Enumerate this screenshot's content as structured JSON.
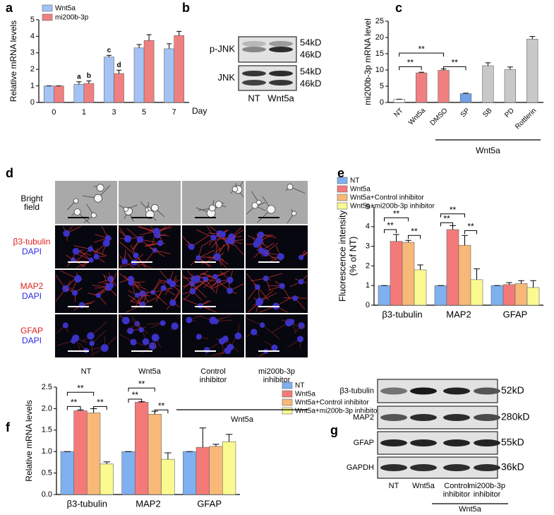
{
  "chart_data": [
    {
      "type": "bar",
      "ylabel": "Relative mRNA levels",
      "xlabel": "Day",
      "categories": [
        "0",
        "1",
        "3",
        "5",
        "7"
      ],
      "series": [
        {
          "name": "Wnt5a",
          "color": "#a4c2f4",
          "values": [
            1,
            1.1,
            2.75,
            3.3,
            3.25
          ],
          "errors": [
            0,
            0.15,
            0.1,
            0.2,
            0.3
          ]
        },
        {
          "name": "mi200b-3p",
          "color": "#f08080",
          "values": [
            1,
            1.15,
            1.75,
            3.75,
            4.05
          ],
          "errors": [
            0,
            0.15,
            0.2,
            0.35,
            0.25
          ]
        }
      ],
      "annotations": [
        "a",
        "b",
        "c",
        "d"
      ],
      "ylim": [
        0,
        5
      ],
      "yticks": [
        0,
        1,
        2,
        3,
        4,
        5
      ]
    },
    {
      "type": "bar",
      "ylabel": "mi200b-3p mRNA level",
      "categories": [
        "NT",
        "Wnt5a",
        "DMSO",
        "SP",
        "SB",
        "PD",
        "Rottlerin"
      ],
      "values": [
        1,
        9.1,
        9.9,
        2.7,
        11.3,
        10.1,
        19.5
      ],
      "errors": [
        0,
        0.2,
        0.4,
        0.15,
        0.9,
        0.8,
        0.8
      ],
      "colors": [
        "#ffffff",
        "#f08080",
        "#f08080",
        "#6fa0e8",
        "#c8c8c8",
        "#c8c8c8",
        "#c8c8c8"
      ],
      "annotations": [
        "**",
        "**",
        "**"
      ],
      "group_label": "Wnt5a",
      "ylim": [
        0,
        25
      ],
      "yticks": [
        0,
        5,
        10,
        15,
        20,
        25
      ]
    },
    {
      "type": "bar",
      "ylabel": [
        "Fluorescence intensity",
        "(% of NT)"
      ],
      "categories": [
        "β3-tubulin",
        "MAP2",
        "GFAP"
      ],
      "series": [
        {
          "name": "NT",
          "color": "#7fb0f0",
          "values": [
            1,
            1,
            1
          ],
          "errors": [
            0,
            0,
            0
          ]
        },
        {
          "name": "Wnt5a",
          "color": "#f47a7a",
          "values": [
            3.25,
            3.85,
            1.05
          ],
          "errors": [
            0.35,
            0.2,
            0.1
          ]
        },
        {
          "name": "Wnt5a+Control inhibitor",
          "color": "#f8b878",
          "values": [
            3.2,
            3.05,
            1.1
          ],
          "errors": [
            0.1,
            0.5,
            0.15
          ]
        },
        {
          "name": "Wnt5a+mi200b-3p inhibitor",
          "color": "#fafa90",
          "values": [
            1.8,
            1.3,
            0.9
          ],
          "errors": [
            0.25,
            0.55,
            0.35
          ]
        }
      ],
      "annotations": [
        "**",
        "**",
        "**",
        "**",
        "**",
        "**"
      ],
      "ylim": [
        0,
        5
      ],
      "yticks": [
        0,
        1,
        2,
        3,
        4,
        5
      ]
    },
    {
      "type": "bar",
      "ylabel": "Relative mRNA levels",
      "categories": [
        "β3-tubulin",
        "MAP2",
        "GFAP"
      ],
      "series": [
        {
          "name": "NT",
          "color": "#7fb0f0",
          "values": [
            1,
            1,
            1
          ],
          "errors": [
            0,
            0,
            0
          ]
        },
        {
          "name": "Wnt5a",
          "color": "#f47a7a",
          "values": [
            1.95,
            2.15,
            1.1
          ],
          "errors": [
            0.02,
            0.01,
            0.45
          ]
        },
        {
          "name": "Wnt5a+Control inhibitor",
          "color": "#f8b878",
          "values": [
            1.9,
            1.87,
            1.12
          ],
          "errors": [
            0.1,
            0.07,
            0.05
          ]
        },
        {
          "name": "Wnt5a+mi200b-3p inhibitor",
          "color": "#fafa90",
          "values": [
            0.71,
            0.82,
            1.23
          ],
          "errors": [
            0.05,
            0.15,
            0.17
          ]
        }
      ],
      "annotations": [
        "**",
        "**",
        "**",
        "**",
        "**",
        "**"
      ],
      "ylim": [
        0,
        2.5
      ],
      "yticks": [
        {
          "value": 0,
          "label": "0.0"
        },
        0.5,
        {
          "value": 1,
          "label": "1.0"
        },
        1.5,
        {
          "value": 2,
          "label": "2.0"
        },
        2.5
      ]
    }
  ],
  "figure": {
    "panel_labels": [
      "a",
      "b",
      "c",
      "d",
      "e",
      "f",
      "g"
    ],
    "blot_b": {
      "rows": [
        {
          "label": "p-JNK",
          "markers": [
            "54kD",
            "46kD"
          ]
        },
        {
          "label": "JNK",
          "markers": [
            "54kD",
            "46kD"
          ]
        }
      ],
      "lanes": [
        "NT",
        "Wnt5a"
      ]
    },
    "micrographs_d": {
      "rows": [
        {
          "labels": [
            "Bright field"
          ]
        },
        {
          "labels": [
            "β3-tubulin",
            "DAPI"
          ]
        },
        {
          "labels": [
            "MAP2",
            "DAPI"
          ]
        },
        {
          "labels": [
            "GFAP",
            "DAPI"
          ]
        }
      ],
      "columns": [
        "NT",
        "Wnt5a",
        "Control inhibitor",
        "mi200b-3p inhibitor"
      ],
      "group": "Wnt5a"
    },
    "blot_g": {
      "rows": [
        {
          "label": "β3-tubulin",
          "marker": "52kD"
        },
        {
          "label": "MAP2",
          "marker": "280kD"
        },
        {
          "label": "GFAP",
          "marker": "55kD"
        },
        {
          "label": "GAPDH",
          "marker": "36kD"
        }
      ],
      "lanes": [
        "NT",
        "Wnt5a",
        "Control inhibitor",
        "mi200b-3p inhibitor"
      ],
      "group": "Wnt5a"
    }
  }
}
